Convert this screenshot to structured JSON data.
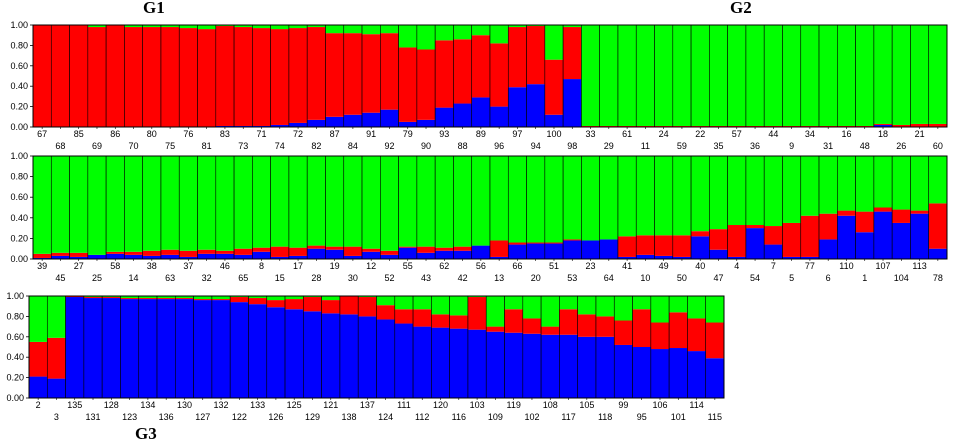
{
  "colors": {
    "cluster1": "#0000ff",
    "cluster2": "#ff0000",
    "cluster3": "#00ff00",
    "border": "#000000"
  },
  "groups": {
    "g1": "G1",
    "g2": "G2",
    "g3": "G3"
  },
  "chart_data": [
    {
      "type": "bar",
      "stacked": true,
      "ylim": [
        0,
        1
      ],
      "yticks": [
        "0.00",
        "0.20",
        "0.40",
        "0.60",
        "0.80",
        "1.00"
      ],
      "categories": [
        "67",
        "68",
        "85",
        "69",
        "86",
        "70",
        "80",
        "75",
        "76",
        "81",
        "83",
        "73",
        "71",
        "74",
        "72",
        "82",
        "87",
        "84",
        "91",
        "92",
        "79",
        "90",
        "93",
        "88",
        "89",
        "96",
        "97",
        "94",
        "100",
        "98",
        "33",
        "29",
        "61",
        "11",
        "24",
        "59",
        "22",
        "35",
        "57",
        "36",
        "44",
        "9",
        "34",
        "31",
        "16",
        "48",
        "18",
        "26",
        "21",
        "60"
      ],
      "series": [
        {
          "values": [
            0,
            0,
            0,
            0,
            0,
            0,
            0,
            0,
            0,
            0,
            0.01,
            0.01,
            0.01,
            0.02,
            0.04,
            0.07,
            0.1,
            0.12,
            0.14,
            0.17,
            0.05,
            0.07,
            0.19,
            0.23,
            0.29,
            0.2,
            0.39,
            0.42,
            0.12,
            0.47,
            0,
            0,
            0,
            0,
            0,
            0,
            0,
            0,
            0,
            0,
            0,
            0,
            0,
            0,
            0,
            0,
            0.02,
            0,
            0,
            0
          ]
        },
        {
          "values": [
            1,
            1,
            1,
            0.98,
            1,
            0.98,
            0.98,
            0.98,
            0.97,
            0.96,
            0.98,
            0.97,
            0.96,
            0.94,
            0.93,
            0.91,
            0.82,
            0.8,
            0.77,
            0.75,
            0.73,
            0.69,
            0.66,
            0.63,
            0.61,
            0.62,
            0.59,
            0.57,
            0.54,
            0.51,
            0.01,
            0.01,
            0.01,
            0.01,
            0.01,
            0.01,
            0.01,
            0.01,
            0.01,
            0.01,
            0.01,
            0.01,
            0.01,
            0.01,
            0.01,
            0.01,
            0.01,
            0.02,
            0.03,
            0.03
          ]
        },
        {
          "values": [
            0,
            0,
            0,
            0.02,
            0,
            0.02,
            0.02,
            0.02,
            0.03,
            0.04,
            0.01,
            0.02,
            0.03,
            0.04,
            0.03,
            0.02,
            0.08,
            0.08,
            0.09,
            0.08,
            0.22,
            0.24,
            0.15,
            0.14,
            0.1,
            0.18,
            0.02,
            0.01,
            0.34,
            0.02,
            0.99,
            0.99,
            0.99,
            0.99,
            0.99,
            0.99,
            0.99,
            0.99,
            0.99,
            0.99,
            0.99,
            0.99,
            0.99,
            0.99,
            0.99,
            0.99,
            0.97,
            0.98,
            0.97,
            0.97
          ]
        }
      ]
    },
    {
      "type": "bar",
      "stacked": true,
      "ylim": [
        0,
        1
      ],
      "yticks": [
        "0.00",
        "0.20",
        "0.40",
        "0.60",
        "0.80",
        "1.00"
      ],
      "categories": [
        "39",
        "45",
        "27",
        "25",
        "58",
        "14",
        "38",
        "63",
        "37",
        "32",
        "46",
        "65",
        "8",
        "15",
        "17",
        "28",
        "19",
        "30",
        "12",
        "52",
        "55",
        "43",
        "62",
        "42",
        "56",
        "13",
        "66",
        "20",
        "51",
        "53",
        "23",
        "64",
        "41",
        "10",
        "49",
        "50",
        "40",
        "47",
        "4",
        "54",
        "7",
        "5",
        "77",
        "6",
        "110",
        "1",
        "107",
        "104",
        "113",
        "78"
      ],
      "series": [
        {
          "values": [
            0.01,
            0.03,
            0.02,
            0.04,
            0.05,
            0.04,
            0.03,
            0.04,
            0.02,
            0.05,
            0.05,
            0.04,
            0.07,
            0.02,
            0.03,
            0.1,
            0.09,
            0.03,
            0.07,
            0.04,
            0.11,
            0.06,
            0.08,
            0.08,
            0.13,
            0.02,
            0.14,
            0.15,
            0.15,
            0.18,
            0.18,
            0.19,
            0.02,
            0.04,
            0.03,
            0.02,
            0.22,
            0.09,
            0.02,
            0.3,
            0.14,
            0.02,
            0.02,
            0.19,
            0.42,
            0.26,
            0.46,
            0.35,
            0.44,
            0.1
          ]
        },
        {
          "values": [
            0.04,
            0.03,
            0.04,
            0,
            0.02,
            0.03,
            0.05,
            0.05,
            0.06,
            0.04,
            0.03,
            0.06,
            0.04,
            0.1,
            0.08,
            0.03,
            0.03,
            0.09,
            0.03,
            0.04,
            0.01,
            0.06,
            0.03,
            0.04,
            0,
            0.16,
            0.02,
            0.01,
            0.01,
            0.01,
            0,
            0,
            0.2,
            0.19,
            0.2,
            0.21,
            0.05,
            0.2,
            0.31,
            0.03,
            0.18,
            0.33,
            0.4,
            0.25,
            0.05,
            0.2,
            0.04,
            0.13,
            0.03,
            0.44
          ]
        },
        {
          "values": [
            0.95,
            0.94,
            0.94,
            0.96,
            0.93,
            0.93,
            0.92,
            0.91,
            0.92,
            0.91,
            0.92,
            0.9,
            0.89,
            0.88,
            0.89,
            0.87,
            0.88,
            0.88,
            0.9,
            0.92,
            0.88,
            0.88,
            0.89,
            0.88,
            0.87,
            0.82,
            0.84,
            0.84,
            0.84,
            0.81,
            0.82,
            0.81,
            0.78,
            0.77,
            0.77,
            0.77,
            0.73,
            0.71,
            0.67,
            0.67,
            0.68,
            0.65,
            0.58,
            0.56,
            0.53,
            0.54,
            0.5,
            0.52,
            0.53,
            0.46
          ]
        }
      ]
    },
    {
      "type": "bar",
      "stacked": true,
      "ylim": [
        0,
        1
      ],
      "yticks": [
        "0.00",
        "0.20",
        "0.40",
        "0.60",
        "0.80",
        "1.00"
      ],
      "categories": [
        "2",
        "3",
        "135",
        "131",
        "128",
        "123",
        "134",
        "136",
        "130",
        "127",
        "132",
        "122",
        "133",
        "126",
        "125",
        "129",
        "121",
        "138",
        "137",
        "124",
        "111",
        "112",
        "120",
        "116",
        "103",
        "109",
        "119",
        "102",
        "108",
        "117",
        "105",
        "118",
        "99",
        "95",
        "106",
        "101",
        "114",
        "115"
      ],
      "series": [
        {
          "values": [
            0.21,
            0.19,
            0.99,
            0.98,
            0.98,
            0.97,
            0.97,
            0.97,
            0.97,
            0.96,
            0.96,
            0.94,
            0.92,
            0.89,
            0.87,
            0.85,
            0.83,
            0.82,
            0.8,
            0.77,
            0.73,
            0.7,
            0.69,
            0.68,
            0.67,
            0.65,
            0.64,
            0.63,
            0.62,
            0.62,
            0.6,
            0.6,
            0.52,
            0.5,
            0.48,
            0.49,
            0.46,
            0.39
          ]
        },
        {
          "values": [
            0.34,
            0.4,
            0.01,
            0.01,
            0.01,
            0.01,
            0.01,
            0.01,
            0.01,
            0.01,
            0.01,
            0.05,
            0.06,
            0.07,
            0.1,
            0.14,
            0.13,
            0.18,
            0.19,
            0.14,
            0.14,
            0.17,
            0.13,
            0.13,
            0.32,
            0.05,
            0.23,
            0.15,
            0.08,
            0.25,
            0.22,
            0.2,
            0.24,
            0.37,
            0.26,
            0.35,
            0.32,
            0.35
          ]
        },
        {
          "values": [
            0.45,
            0.41,
            0,
            0.01,
            0.01,
            0.02,
            0.02,
            0.02,
            0.02,
            0.03,
            0.03,
            0.01,
            0.02,
            0.04,
            0.03,
            0.01,
            0.04,
            0,
            0.01,
            0.09,
            0.13,
            0.13,
            0.18,
            0.19,
            0.01,
            0.3,
            0.13,
            0.22,
            0.3,
            0.13,
            0.18,
            0.2,
            0.24,
            0.13,
            0.26,
            0.16,
            0.22,
            0.26
          ]
        }
      ]
    }
  ]
}
